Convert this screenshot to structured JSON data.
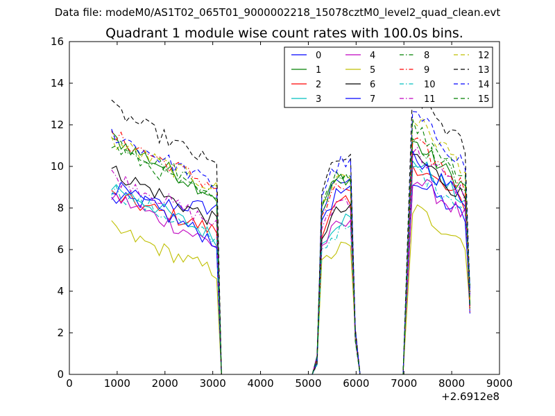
{
  "chart_data": {
    "type": "line",
    "suptitle": "Data file: modeM0/AS1T02_065T01_9000002218_15078cztM0_level2_quad_clean.evt",
    "title": "Quadrant 1 module wise count rates with 100.0s bins.",
    "xlabel": "",
    "ylabel": "",
    "x_offset_label": "+2.6912e8",
    "xlim": [
      0,
      9000
    ],
    "ylim": [
      0,
      16
    ],
    "x_ticks": [
      "0",
      "1000",
      "2000",
      "3000",
      "4000",
      "5000",
      "6000",
      "7000",
      "8000",
      "9000"
    ],
    "y_ticks": [
      "0",
      "2",
      "4",
      "6",
      "8",
      "10",
      "12",
      "14",
      "16"
    ],
    "legend_position": "top-right",
    "segments": [
      {
        "start": 882,
        "end": 3082,
        "fall_end": 3182
      },
      {
        "start": 5282,
        "end": 5882,
        "rise_start": 5082,
        "fall_end": 6082
      },
      {
        "start": 7182,
        "end": 8382,
        "rise_start": 6982,
        "fall_end": 8382
      }
    ],
    "series": [
      {
        "name": "0",
        "color": "#0000ff",
        "dash": "solid",
        "levels": [
          8.4,
          9.3,
          9.4
        ],
        "drop": 0.95
      },
      {
        "name": "1",
        "color": "#008000",
        "dash": "solid",
        "levels": [
          11.4,
          9.5,
          11.2
        ],
        "drop": 0.75
      },
      {
        "name": "2",
        "color": "#ff0000",
        "dash": "solid",
        "levels": [
          8.6,
          8.2,
          10.2
        ],
        "drop": 0.8
      },
      {
        "name": "3",
        "color": "#00bfbf",
        "dash": "solid",
        "levels": [
          9.1,
          7.5,
          10.4
        ],
        "drop": 0.72
      },
      {
        "name": "4",
        "color": "#bf00bf",
        "dash": "solid",
        "levels": [
          8.6,
          7.2,
          9.5
        ],
        "drop": 0.72
      },
      {
        "name": "5",
        "color": "#bfbf00",
        "dash": "solid",
        "levels": [
          7.0,
          6.1,
          8.0
        ],
        "drop": 0.7
      },
      {
        "name": "6",
        "color": "#000000",
        "dash": "solid",
        "levels": [
          9.8,
          7.9,
          10.6
        ],
        "drop": 0.75
      },
      {
        "name": "7",
        "color": "#0000ff",
        "dash": "solid",
        "levels": [
          9.1,
          8.8,
          10.5
        ],
        "drop": 0.7
      },
      {
        "name": "8",
        "color": "#008000",
        "dash": "dashdot",
        "levels": [
          11.3,
          9.8,
          11.4
        ],
        "drop": 0.78
      },
      {
        "name": "9",
        "color": "#ff0000",
        "dash": "dashdot",
        "levels": [
          11.5,
          9.0,
          11.2
        ],
        "drop": 0.78
      },
      {
        "name": "10",
        "color": "#00bfbf",
        "dash": "dashdot",
        "levels": [
          8.9,
          7.0,
          10.0
        ],
        "drop": 0.72
      },
      {
        "name": "11",
        "color": "#bf00bf",
        "dash": "dashdot",
        "levels": [
          9.6,
          8.4,
          10.8
        ],
        "drop": 0.75
      },
      {
        "name": "12",
        "color": "#bfbf00",
        "dash": "dashed",
        "levels": [
          11.2,
          9.6,
          12.4
        ],
        "drop": 0.8
      },
      {
        "name": "13",
        "color": "#000000",
        "dash": "dashed",
        "levels": [
          12.8,
          10.4,
          13.6
        ],
        "drop": 0.78
      },
      {
        "name": "14",
        "color": "#0000ff",
        "dash": "dashed",
        "levels": [
          11.6,
          10.2,
          12.6
        ],
        "drop": 0.78
      },
      {
        "name": "15",
        "color": "#008000",
        "dash": "dashed",
        "levels": [
          11.0,
          9.6,
          12.0
        ],
        "drop": 0.75
      }
    ]
  }
}
